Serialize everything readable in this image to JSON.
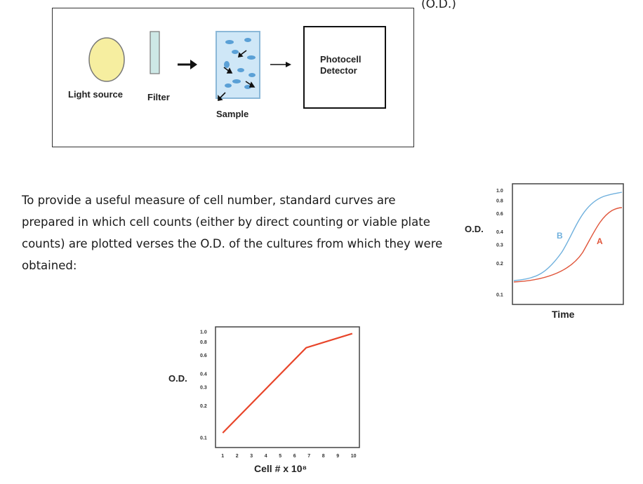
{
  "header": {
    "od_label": "(O.D.)"
  },
  "apparatus": {
    "light_source_label": "Light source",
    "filter_label": "Filter",
    "sample_label": "Sample",
    "detector_label_line1": "Photocell",
    "detector_label_line2": "Detector"
  },
  "paragraph": {
    "text": "To provide a useful measure of cell number, standard curves are prepared in which cell counts (either by direct counting or viable plate counts) are plotted verses the O.D. of the cultures from which they were obtained:"
  },
  "chart_data": [
    {
      "type": "line",
      "title": "",
      "xlabel": "Time",
      "ylabel": "O.D.",
      "yscale": "log",
      "yticks": [
        "0.1",
        "0.2",
        "0.3",
        "0.4",
        "0.6",
        "0.8",
        "1.0"
      ],
      "series": [
        {
          "name": "B",
          "color": "#6fb0dd"
        },
        {
          "name": "A",
          "color": "#e0553a"
        }
      ],
      "legend": "inline labels",
      "grid": false
    },
    {
      "type": "line",
      "title": "",
      "xlabel": "Cell # x 10⁸",
      "ylabel": "O.D.",
      "yscale": "log",
      "xticks": [
        "1",
        "2",
        "3",
        "4",
        "5",
        "6",
        "7",
        "8",
        "9",
        "10"
      ],
      "yticks": [
        "0.1",
        "0.2",
        "0.3",
        "0.4",
        "0.6",
        "0.8",
        "1.0"
      ],
      "series": [
        {
          "x": [
            1,
            6.8,
            10
          ],
          "y": [
            0.11,
            0.7,
            0.95
          ],
          "color": "#e8452a"
        }
      ],
      "xlim": [
        0.5,
        10.5
      ],
      "ylim": [
        0.08,
        1.1
      ],
      "grid": false
    }
  ]
}
